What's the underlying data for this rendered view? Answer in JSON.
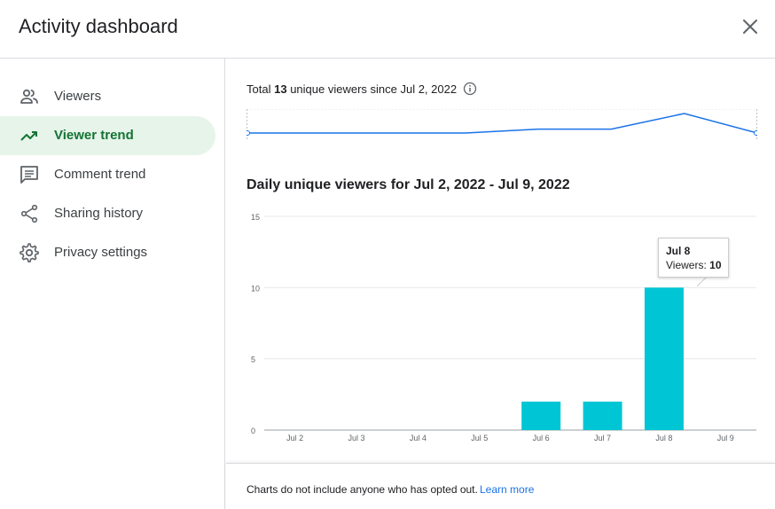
{
  "header": {
    "title": "Activity dashboard"
  },
  "sidebar": {
    "items": [
      {
        "label": "Viewers",
        "icon": "people-icon",
        "active": false
      },
      {
        "label": "Viewer trend",
        "icon": "trending-up-icon",
        "active": true
      },
      {
        "label": "Comment trend",
        "icon": "comment-icon",
        "active": false
      },
      {
        "label": "Sharing history",
        "icon": "share-icon",
        "active": false
      },
      {
        "label": "Privacy settings",
        "icon": "gear-icon",
        "active": false
      }
    ]
  },
  "summary": {
    "prefix": "Total",
    "count": "13",
    "suffix": "unique viewers since Jul 2, 2022"
  },
  "sparkline": {
    "values": [
      0,
      0,
      0,
      0,
      2,
      2,
      10,
      0
    ],
    "color": "#1a73e8"
  },
  "chart_title": "Daily unique viewers for Jul 2, 2022 - Jul 9, 2022",
  "chart_data": {
    "type": "bar",
    "categories": [
      "Jul 2",
      "Jul 3",
      "Jul 4",
      "Jul 5",
      "Jul 6",
      "Jul 7",
      "Jul 8",
      "Jul 9"
    ],
    "values": [
      0,
      0,
      0,
      0,
      2,
      2,
      10,
      0
    ],
    "ylim": [
      0,
      15
    ],
    "yticks": [
      0,
      5,
      10,
      15
    ],
    "bar_color": "#00c5d4",
    "grid": true
  },
  "tooltip": {
    "date": "Jul 8",
    "label": "Viewers:",
    "value": "10"
  },
  "footer": {
    "text": "Charts do not include anyone who has opted out.",
    "link": "Learn more"
  },
  "colors": {
    "accent": "#137333",
    "active_bg": "#e6f4ea",
    "link": "#1a73e8"
  }
}
